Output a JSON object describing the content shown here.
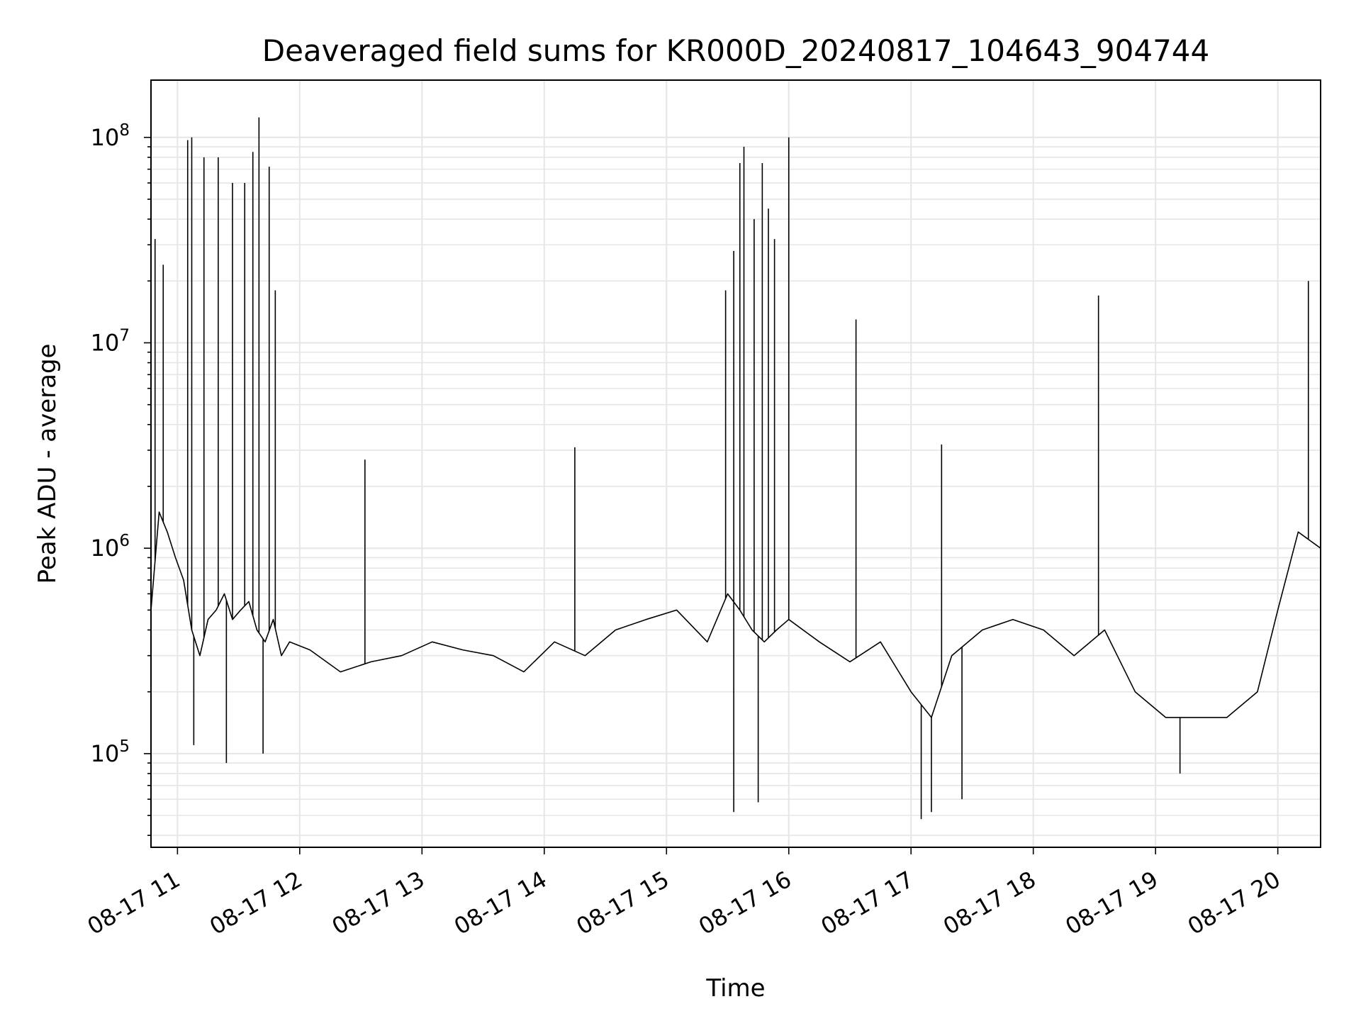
{
  "chart_data": {
    "type": "line",
    "title": "Deaveraged field sums for KR000D_20240817_104643_904744",
    "xlabel": "Time",
    "ylabel": "Peak ADU - average",
    "x_ticks": [
      "08-17 11",
      "08-17 12",
      "08-17 13",
      "08-17 14",
      "08-17 15",
      "08-17 16",
      "08-17 17",
      "08-17 18",
      "08-17 19",
      "08-17 20"
    ],
    "y_ticks": [
      {
        "base": "10",
        "exp": "5",
        "value": 100000
      },
      {
        "base": "10",
        "exp": "6",
        "value": 1000000
      },
      {
        "base": "10",
        "exp": "7",
        "value": 10000000
      },
      {
        "base": "10",
        "exp": "8",
        "value": 100000000
      }
    ],
    "xlim": [
      "2024-08-17 10:47",
      "2024-08-17 20:21"
    ],
    "ylim": [
      35000,
      190000000
    ],
    "yscale": "log",
    "grid": true,
    "line_color": "#000000",
    "grid_color": "#e6e6e6",
    "series": [
      {
        "x": [
          "2024-08-17 10:47",
          "2024-08-17 10:51",
          "2024-08-17 10:55",
          "2024-08-17 10:59",
          "2024-08-17 11:03",
          "2024-08-17 11:07",
          "2024-08-17 11:11",
          "2024-08-17 11:15",
          "2024-08-17 11:19",
          "2024-08-17 11:23",
          "2024-08-17 11:27",
          "2024-08-17 11:31",
          "2024-08-17 11:35",
          "2024-08-17 11:39",
          "2024-08-17 11:43",
          "2024-08-17 11:47",
          "2024-08-17 11:51",
          "2024-08-17 11:55",
          "2024-08-17 12:05",
          "2024-08-17 12:20",
          "2024-08-17 12:35",
          "2024-08-17 12:50",
          "2024-08-17 13:05",
          "2024-08-17 13:20",
          "2024-08-17 13:35",
          "2024-08-17 13:50",
          "2024-08-17 14:05",
          "2024-08-17 14:20",
          "2024-08-17 14:35",
          "2024-08-17 14:50",
          "2024-08-17 15:05",
          "2024-08-17 15:20",
          "2024-08-17 15:30",
          "2024-08-17 15:36",
          "2024-08-17 15:42",
          "2024-08-17 15:48",
          "2024-08-17 15:54",
          "2024-08-17 16:00",
          "2024-08-17 16:15",
          "2024-08-17 16:30",
          "2024-08-17 16:45",
          "2024-08-17 17:00",
          "2024-08-17 17:10",
          "2024-08-17 17:20",
          "2024-08-17 17:35",
          "2024-08-17 17:50",
          "2024-08-17 18:05",
          "2024-08-17 18:20",
          "2024-08-17 18:35",
          "2024-08-17 18:50",
          "2024-08-17 19:05",
          "2024-08-17 19:20",
          "2024-08-17 19:35",
          "2024-08-17 19:50",
          "2024-08-17 20:00",
          "2024-08-17 20:10",
          "2024-08-17 20:21"
        ],
        "values": [
          500000,
          1500000,
          1200000,
          900000,
          700000,
          400000,
          300000,
          450000,
          500000,
          600000,
          450000,
          500000,
          550000,
          400000,
          350000,
          450000,
          300000,
          350000,
          320000,
          250000,
          280000,
          300000,
          350000,
          320000,
          300000,
          250000,
          350000,
          300000,
          400000,
          450000,
          500000,
          350000,
          600000,
          500000,
          400000,
          350000,
          400000,
          450000,
          350000,
          280000,
          350000,
          200000,
          150000,
          300000,
          400000,
          450000,
          400000,
          300000,
          400000,
          200000,
          150000,
          150000,
          150000,
          200000,
          500000,
          1200000,
          1000000
        ]
      }
    ],
    "spikes": [
      {
        "x": "2024-08-17 10:49",
        "value": 32000000
      },
      {
        "x": "2024-08-17 10:53",
        "value": 24000000
      },
      {
        "x": "2024-08-17 11:05",
        "value": 97000000
      },
      {
        "x": "2024-08-17 11:07",
        "value": 100000000
      },
      {
        "x": "2024-08-17 11:13",
        "value": 80000000
      },
      {
        "x": "2024-08-17 11:20",
        "value": 80000000
      },
      {
        "x": "2024-08-17 11:27",
        "value": 60000000
      },
      {
        "x": "2024-08-17 11:33",
        "value": 60000000
      },
      {
        "x": "2024-08-17 11:37",
        "value": 85000000
      },
      {
        "x": "2024-08-17 11:40",
        "value": 125000000
      },
      {
        "x": "2024-08-17 11:45",
        "value": 72000000
      },
      {
        "x": "2024-08-17 11:48",
        "value": 18000000
      },
      {
        "x": "2024-08-17 12:32",
        "value": 2700000
      },
      {
        "x": "2024-08-17 14:15",
        "value": 3100000
      },
      {
        "x": "2024-08-17 15:29",
        "value": 18000000
      },
      {
        "x": "2024-08-17 15:33",
        "value": 28000000
      },
      {
        "x": "2024-08-17 15:36",
        "value": 75000000
      },
      {
        "x": "2024-08-17 15:38",
        "value": 90000000
      },
      {
        "x": "2024-08-17 15:43",
        "value": 40000000
      },
      {
        "x": "2024-08-17 15:47",
        "value": 75000000
      },
      {
        "x": "2024-08-17 15:50",
        "value": 45000000
      },
      {
        "x": "2024-08-17 15:53",
        "value": 32000000
      },
      {
        "x": "2024-08-17 16:00",
        "value": 100000000
      },
      {
        "x": "2024-08-17 16:33",
        "value": 13000000
      },
      {
        "x": "2024-08-17 17:15",
        "value": 3200000
      },
      {
        "x": "2024-08-17 18:32",
        "value": 17000000
      },
      {
        "x": "2024-08-17 20:15",
        "value": 20000000
      }
    ],
    "dips": [
      {
        "x": "2024-08-17 11:08",
        "value": 110000
      },
      {
        "x": "2024-08-17 11:24",
        "value": 90000
      },
      {
        "x": "2024-08-17 11:42",
        "value": 100000
      },
      {
        "x": "2024-08-17 15:33",
        "value": 52000
      },
      {
        "x": "2024-08-17 15:45",
        "value": 58000
      },
      {
        "x": "2024-08-17 17:05",
        "value": 48000
      },
      {
        "x": "2024-08-17 17:10",
        "value": 52000
      },
      {
        "x": "2024-08-17 17:25",
        "value": 60000
      },
      {
        "x": "2024-08-17 19:12",
        "value": 80000
      }
    ]
  }
}
